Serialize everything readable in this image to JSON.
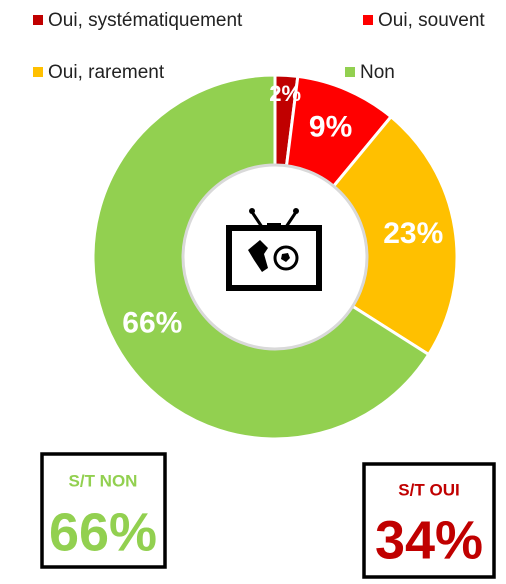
{
  "chart_data": {
    "type": "donut",
    "categories": [
      "Oui, systématiquement",
      "Oui, souvent",
      "Oui, rarement",
      "Non"
    ],
    "values": [
      2,
      9,
      23,
      66
    ],
    "value_labels": [
      "2%",
      "9%",
      "23%",
      "66%"
    ],
    "colors": [
      "#c00000",
      "#ff0000",
      "#ffc000",
      "#92d050"
    ],
    "summaries": [
      {
        "label": "S/T NON",
        "value": "66%",
        "color": "#92d050"
      },
      {
        "label": "S/T OUI",
        "value": "34%",
        "color": "#c00000"
      }
    ]
  }
}
